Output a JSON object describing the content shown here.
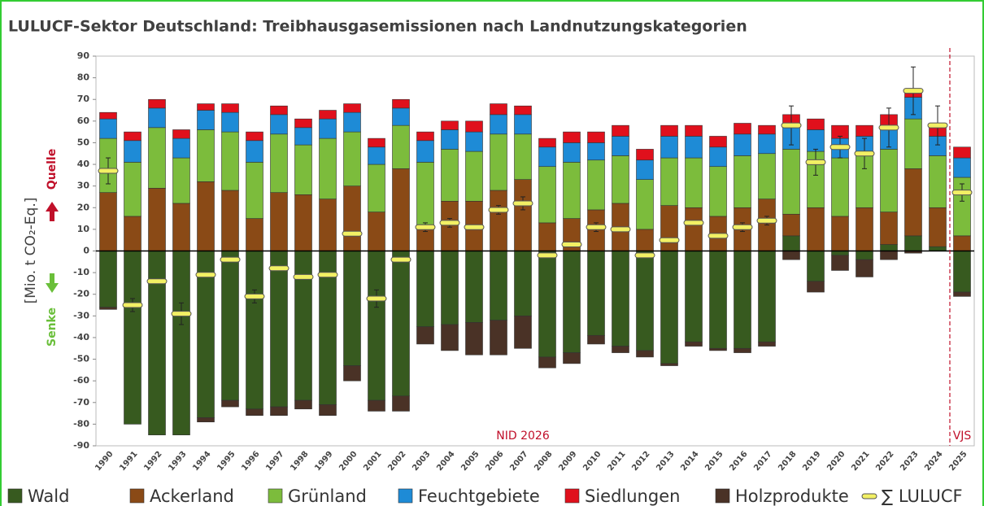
{
  "chart_data": {
    "type": "stacked_bar",
    "title": "LULUCF-Sektor Deutschland: Treibhausgasemissionen nach Landnutzungskategorien",
    "y_label": "[Mio. t CO₂-Eq.]",
    "annotations": {
      "source": "Quelle",
      "sink": "Senke",
      "nid": "NID 2026",
      "vjs": "VJS"
    },
    "categories": [
      "1990",
      "1991",
      "1992",
      "1993",
      "1994",
      "1995",
      "1996",
      "1997",
      "1998",
      "1999",
      "2000",
      "2001",
      "2002",
      "2003",
      "2004",
      "2005",
      "2006",
      "2007",
      "2008",
      "2009",
      "2010",
      "2011",
      "2012",
      "2013",
      "2014",
      "2015",
      "2016",
      "2017",
      "2018",
      "2019",
      "2020",
      "2021",
      "2022",
      "2023",
      "2024",
      "2025"
    ],
    "series": [
      {
        "name": "Wald",
        "color": "#375a1f",
        "values": [
          -26,
          -80,
          -85,
          -85,
          -77,
          -69,
          -73,
          -72,
          -69,
          -71,
          -53,
          -69,
          -67,
          -35,
          -34,
          -33,
          -32,
          -30,
          -49,
          -47,
          -39,
          -44,
          -46,
          -52,
          -42,
          -45,
          -45,
          -42,
          7,
          -14,
          -2,
          -4,
          3,
          7,
          2,
          -19
        ]
      },
      {
        "name": "Ackerland",
        "color": "#8a4a16",
        "values": [
          27,
          16,
          29,
          22,
          32,
          28,
          15,
          27,
          26,
          24,
          30,
          18,
          38,
          12,
          23,
          23,
          28,
          33,
          13,
          15,
          19,
          22,
          10,
          21,
          20,
          16,
          20,
          24,
          10,
          20,
          16,
          20,
          15,
          31,
          18,
          7
        ]
      },
      {
        "name": "Grünland",
        "color": "#7cbc3c",
        "values": [
          25,
          25,
          28,
          21,
          24,
          27,
          26,
          27,
          23,
          28,
          25,
          22,
          20,
          29,
          24,
          23,
          26,
          21,
          26,
          26,
          23,
          22,
          23,
          22,
          23,
          23,
          24,
          21,
          30,
          26,
          27,
          24,
          29,
          23,
          24,
          27
        ]
      },
      {
        "name": "Feuchtgebiete",
        "color": "#1e8bd6",
        "values": [
          9,
          10,
          9,
          9,
          9,
          9,
          10,
          9,
          8,
          9,
          9,
          8,
          8,
          10,
          9,
          9,
          9,
          9,
          9,
          9,
          8,
          9,
          9,
          10,
          10,
          9,
          10,
          9,
          12,
          10,
          9,
          9,
          11,
          10,
          9,
          9
        ]
      },
      {
        "name": "Siedlungen",
        "color": "#e0101c",
        "values": [
          3,
          4,
          4,
          4,
          3,
          4,
          4,
          4,
          4,
          4,
          4,
          4,
          4,
          4,
          4,
          5,
          5,
          4,
          4,
          5,
          5,
          5,
          5,
          5,
          5,
          5,
          5,
          4,
          4,
          5,
          6,
          5,
          5,
          3,
          5,
          5
        ]
      },
      {
        "name": "Holzprodukte",
        "color": "#4a3226",
        "values": [
          -1,
          0,
          0,
          0,
          -2,
          -3,
          -3,
          -4,
          -4,
          -5,
          -7,
          -5,
          -7,
          -8,
          -12,
          -15,
          -16,
          -15,
          -5,
          -5,
          -4,
          -3,
          -3,
          -1,
          -2,
          -1,
          -2,
          -2,
          -4,
          -5,
          -7,
          -8,
          -4,
          -1,
          0,
          -2
        ]
      }
    ],
    "sum": {
      "name": "∑ LULUCF",
      "color": "#f2f064",
      "values": [
        37,
        -25,
        -14,
        -29,
        -11,
        -4,
        -21,
        -8,
        -12,
        -11,
        8,
        -22,
        -4,
        11,
        13,
        11,
        19,
        22,
        -2,
        3,
        11,
        10,
        -2,
        5,
        13,
        7,
        11,
        14,
        58,
        41,
        48,
        45,
        57,
        74,
        58,
        27
      ],
      "errors": [
        6,
        3,
        null,
        5,
        null,
        null,
        3,
        null,
        null,
        null,
        null,
        4,
        null,
        2,
        2,
        null,
        2,
        3,
        null,
        null,
        2,
        null,
        null,
        null,
        null,
        null,
        2,
        2,
        9,
        6,
        5,
        7,
        9,
        11,
        9,
        4
      ]
    },
    "ylim": [
      -90,
      90
    ],
    "yticks": [
      -90,
      -80,
      -70,
      -60,
      -50,
      -40,
      -30,
      -20,
      -10,
      0,
      10,
      20,
      30,
      40,
      50,
      60,
      70,
      80,
      90
    ]
  }
}
